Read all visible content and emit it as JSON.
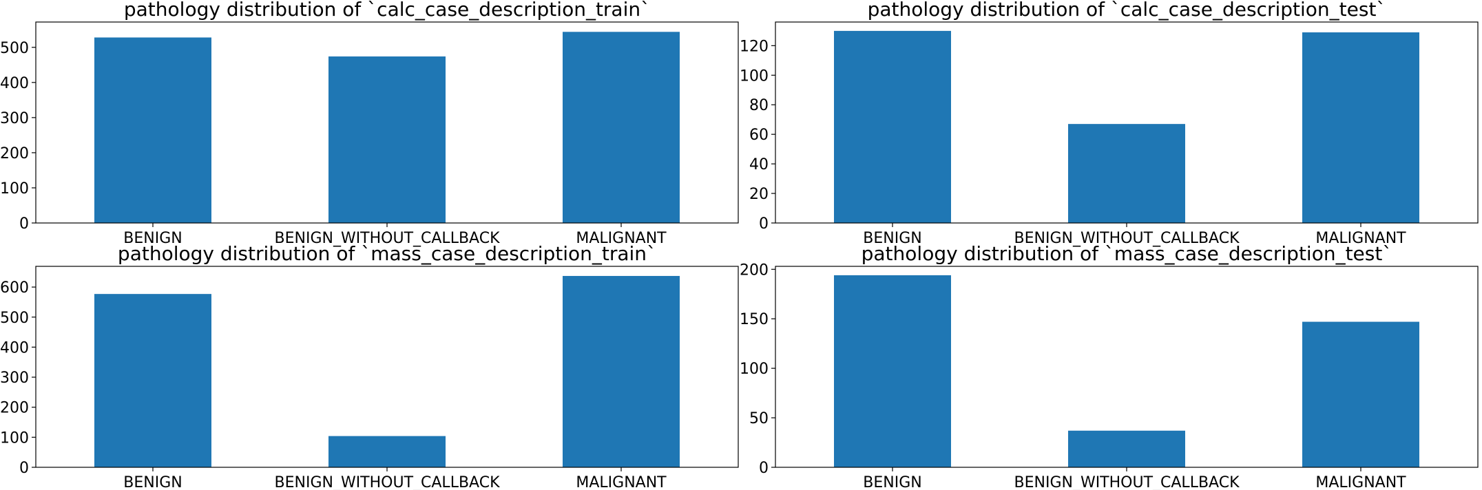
{
  "chart_data": [
    {
      "type": "bar",
      "title": "pathology distribution of `calc_case_description_train`",
      "categories": [
        "BENIGN",
        "BENIGN_WITHOUT_CALLBACK",
        "MALIGNANT"
      ],
      "values": [
        528,
        474,
        544
      ],
      "ylim": [
        0,
        572
      ],
      "yticks": [
        0,
        100,
        200,
        300,
        400,
        500
      ],
      "color": "#1f77b4",
      "grid": false
    },
    {
      "type": "bar",
      "title": "pathology distribution of `calc_case_description_test`",
      "categories": [
        "BENIGN",
        "BENIGN_WITHOUT_CALLBACK",
        "MALIGNANT"
      ],
      "values": [
        130,
        67,
        129
      ],
      "ylim": [
        0,
        136
      ],
      "yticks": [
        0,
        20,
        40,
        60,
        80,
        100,
        120
      ],
      "color": "#1f77b4",
      "grid": false
    },
    {
      "type": "bar",
      "title": "pathology distribution of `mass_case_description_train`",
      "categories": [
        "BENIGN",
        "BENIGN_WITHOUT_CALLBACK",
        "MALIGNANT"
      ],
      "values": [
        577,
        104,
        637
      ],
      "ylim": [
        0,
        669
      ],
      "yticks": [
        0,
        100,
        200,
        300,
        400,
        500,
        600
      ],
      "color": "#1f77b4",
      "grid": false
    },
    {
      "type": "bar",
      "title": "pathology distribution of `mass_case_description_test`",
      "categories": [
        "BENIGN",
        "BENIGN_WITHOUT_CALLBACK",
        "MALIGNANT"
      ],
      "values": [
        194,
        37,
        147
      ],
      "ylim": [
        0,
        203
      ],
      "yticks": [
        0,
        50,
        100,
        150,
        200
      ],
      "color": "#1f77b4",
      "grid": false
    }
  ]
}
